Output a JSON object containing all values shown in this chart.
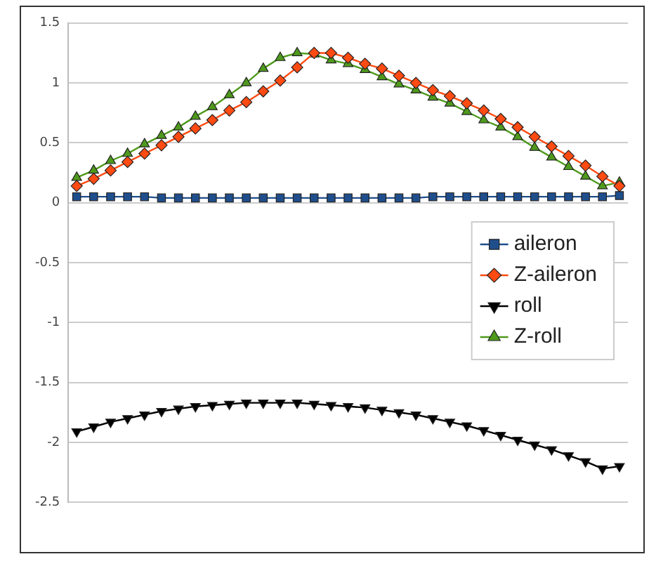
{
  "chart_data": {
    "type": "line",
    "categories": [
      null,
      null,
      null,
      null,
      null,
      null,
      null,
      null,
      null,
      null,
      null,
      null,
      null,
      null,
      null,
      null,
      null,
      null,
      null,
      null,
      null,
      null,
      null,
      null,
      null,
      null,
      null,
      null,
      null,
      null,
      null,
      null,
      null
    ],
    "ylim": [
      -2.5,
      1.5
    ],
    "yticks": [
      {
        "value": -2.5,
        "label": "-2.5"
      },
      -2,
      {
        "value": -1.5,
        "label": "-1.5"
      },
      -1,
      {
        "value": -0.5,
        "label": "-0.5"
      },
      0,
      {
        "value": 0.5,
        "label": "0.5"
      },
      1,
      {
        "value": 1.5,
        "label": "1.5"
      }
    ],
    "grid": "y",
    "legend": "right",
    "line_style": "solid",
    "series": [
      {
        "name": "aileron",
        "color": "#1f4e8c",
        "marker": "square",
        "values": [
          0.05,
          0.05,
          0.05,
          0.05,
          0.05,
          0.04,
          0.04,
          0.04,
          0.04,
          0.04,
          0.04,
          0.04,
          0.04,
          0.04,
          0.04,
          0.04,
          0.04,
          0.04,
          0.04,
          0.04,
          0.04,
          0.05,
          0.05,
          0.05,
          0.05,
          0.05,
          0.05,
          0.05,
          0.05,
          0.05,
          0.05,
          0.05,
          0.06
        ]
      },
      {
        "name": "Z-aileron",
        "color": "#ff4a12",
        "marker": "diamond",
        "values": [
          0.14,
          0.2,
          0.27,
          0.34,
          0.41,
          0.48,
          0.55,
          0.62,
          0.69,
          0.77,
          0.84,
          0.93,
          1.02,
          1.13,
          1.25,
          1.25,
          1.21,
          1.16,
          1.12,
          1.06,
          1.0,
          0.94,
          0.89,
          0.83,
          0.77,
          0.7,
          0.63,
          0.55,
          0.47,
          0.39,
          0.31,
          0.22,
          0.14
        ]
      },
      {
        "name": "roll",
        "color": "#000000",
        "marker": "triangle-down",
        "values": [
          -1.91,
          -1.87,
          -1.83,
          -1.8,
          -1.77,
          -1.74,
          -1.72,
          -1.7,
          -1.69,
          -1.68,
          -1.67,
          -1.67,
          -1.67,
          -1.67,
          -1.68,
          -1.69,
          -1.7,
          -1.71,
          -1.73,
          -1.75,
          -1.77,
          -1.8,
          -1.83,
          -1.86,
          -1.9,
          -1.94,
          -1.98,
          -2.02,
          -2.06,
          -2.11,
          -2.16,
          -2.22,
          -2.2
        ]
      },
      {
        "name": "Z-roll",
        "color": "#4e9a1c",
        "marker": "triangle",
        "values": [
          0.21,
          0.27,
          0.35,
          0.41,
          0.49,
          0.56,
          0.63,
          0.72,
          0.8,
          0.9,
          1.0,
          1.12,
          1.21,
          1.25,
          1.24,
          1.19,
          1.16,
          1.11,
          1.05,
          0.99,
          0.94,
          0.88,
          0.83,
          0.76,
          0.69,
          0.63,
          0.55,
          0.46,
          0.38,
          0.3,
          0.22,
          0.14,
          0.17
        ]
      }
    ]
  }
}
